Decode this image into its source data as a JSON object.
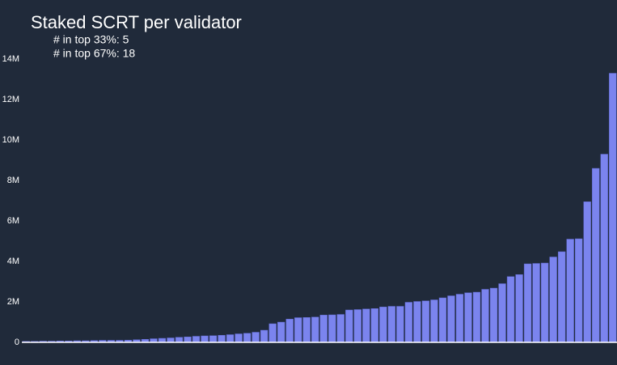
{
  "chart_data": {
    "type": "bar",
    "title": "Staked SCRT per validator",
    "annotations": [
      "# in top 33%: 5",
      "# in top 67%: 18"
    ],
    "color": "#7b84ee",
    "values": [
      0.05,
      0.05,
      0.06,
      0.06,
      0.07,
      0.07,
      0.08,
      0.08,
      0.09,
      0.1,
      0.1,
      0.1,
      0.11,
      0.13,
      0.15,
      0.18,
      0.2,
      0.22,
      0.25,
      0.27,
      0.3,
      0.32,
      0.33,
      0.35,
      0.38,
      0.42,
      0.45,
      0.5,
      0.6,
      0.92,
      1.0,
      1.15,
      1.22,
      1.23,
      1.25,
      1.35,
      1.36,
      1.38,
      1.6,
      1.62,
      1.65,
      1.67,
      1.75,
      1.78,
      1.78,
      1.98,
      2.02,
      2.05,
      2.1,
      2.2,
      2.3,
      2.38,
      2.45,
      2.48,
      2.62,
      2.68,
      2.9,
      3.25,
      3.35,
      3.88,
      3.9,
      3.92,
      4.22,
      4.48,
      5.1,
      5.12,
      6.95,
      8.6,
      9.3,
      13.3
    ],
    "ylim": [
      0,
      14
    ],
    "yticks": [
      0,
      {
        "value": 2,
        "label": "2M"
      },
      {
        "value": 4,
        "label": "4M"
      },
      {
        "value": 6,
        "label": "6M"
      },
      {
        "value": 8,
        "label": "8M"
      },
      {
        "value": 10,
        "label": "10M"
      },
      {
        "value": 12,
        "label": "12M"
      },
      {
        "value": 14,
        "label": "14M"
      }
    ]
  }
}
